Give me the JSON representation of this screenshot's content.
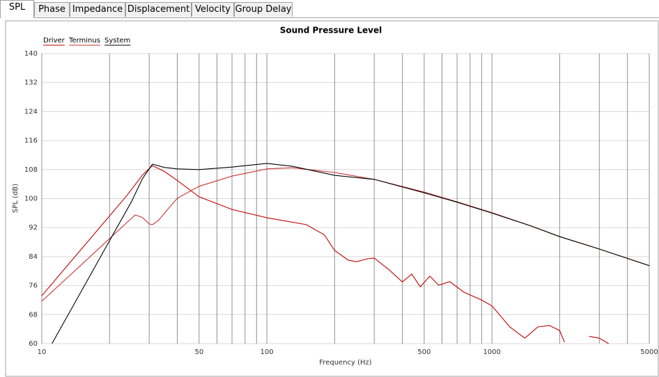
{
  "tabs": [
    "SPL",
    "Phase",
    "Impedance",
    "Displacement",
    "Velocity",
    "Group Delay"
  ],
  "selected_tab": 0,
  "chart_data": {
    "type": "line",
    "title": "Sound Pressure Level",
    "x_label": "Frequency (Hz)",
    "y_label": "SPL (dB)",
    "xscale": "log",
    "xlim": [
      10,
      5000
    ],
    "ylim": [
      60,
      140
    ],
    "xticks": [
      10,
      50,
      100,
      500,
      1000,
      5000
    ],
    "xminor_ticks": [
      20,
      30,
      40,
      60,
      70,
      80,
      90,
      200,
      300,
      400,
      600,
      700,
      800,
      900,
      2000,
      3000,
      4000
    ],
    "yticks": [
      60,
      68,
      76,
      84,
      92,
      100,
      108,
      116,
      124,
      132,
      140
    ],
    "grid": true,
    "legend": "top-left",
    "series": [
      {
        "name": "Driver",
        "color": "#c00000",
        "x": [
          10,
          12,
          15,
          19,
          24,
          28,
          31,
          35,
          40,
          50,
          70,
          100,
          150,
          180,
          200,
          230,
          250,
          280,
          300,
          350,
          400,
          440,
          480,
          530,
          580,
          650,
          750,
          900,
          1000,
          1200,
          1400,
          1600,
          1800,
          2000,
          2100,
          2400,
          2700,
          3000,
          3300
        ],
        "values": [
          73.2,
          79.0,
          86.1,
          93.6,
          101,
          106.5,
          109.1,
          107.5,
          105,
          100.5,
          97,
          94.7,
          92.8,
          90,
          85.7,
          83,
          82.6,
          83.4,
          83.6,
          80.3,
          77,
          79.2,
          75.7,
          78.6,
          76.1,
          77.1,
          74.2,
          72,
          70.4,
          64.6,
          61.5,
          64.6,
          65,
          63.6,
          60.4,
          null,
          62,
          61.5,
          60
        ]
      },
      {
        "name": "Terminus",
        "color": "#c83030",
        "x": [
          10,
          13,
          17,
          21,
          24,
          26,
          28,
          30,
          31,
          33,
          36,
          40,
          50,
          70,
          100,
          130,
          200,
          300,
          500,
          700,
          1000,
          1500,
          2000,
          3000,
          5000
        ],
        "values": [
          71.7,
          78.2,
          84.9,
          90.2,
          93.5,
          95.5,
          94.8,
          93,
          92.8,
          94,
          96.8,
          100.1,
          103.4,
          106.2,
          108.2,
          108.5,
          107.2,
          105.3,
          101.8,
          99.1,
          96.1,
          92.4,
          89.5,
          86.1,
          81.5
        ]
      },
      {
        "name": "System",
        "color": "#000000",
        "x": [
          11.1,
          15,
          20,
          25,
          28,
          31,
          35,
          40,
          50,
          70,
          100,
          130,
          200,
          300,
          500,
          700,
          1000,
          1500,
          2000,
          3000,
          5000
        ],
        "values": [
          60,
          74.5,
          88.4,
          99.1,
          105.5,
          109.5,
          108.6,
          108.2,
          108,
          108.7,
          109.7,
          108.9,
          106.4,
          105.3,
          101.6,
          99,
          96,
          92.4,
          89.5,
          86.1,
          81.5
        ]
      }
    ]
  }
}
